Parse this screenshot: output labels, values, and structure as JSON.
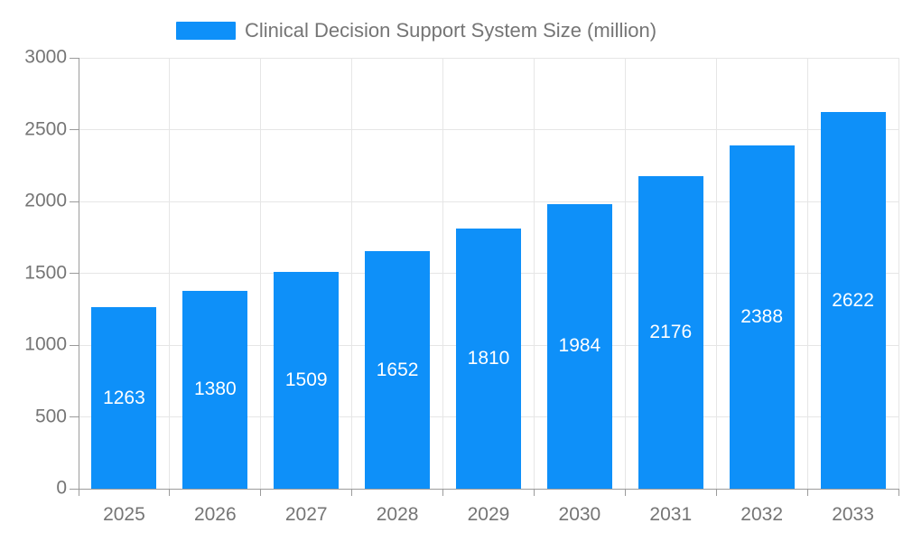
{
  "legend": {
    "label": "Clinical Decision Support System Size (million)"
  },
  "colors": {
    "bar": "#0e90f9",
    "axis": "#9b9b9b",
    "grid": "#e6e6e6",
    "tick_label": "#757575",
    "value_label": "#ffffff",
    "background": "#ffffff"
  },
  "chart_data": {
    "type": "bar",
    "title": "Clinical Decision Support System Size (million)",
    "categories": [
      "2025",
      "2026",
      "2027",
      "2028",
      "2029",
      "2030",
      "2031",
      "2032",
      "2033"
    ],
    "values": [
      1263,
      1380,
      1509,
      1652,
      1810,
      1984,
      2176,
      2388,
      2622
    ],
    "xlabel": "",
    "ylabel": "",
    "ylim": [
      0,
      3000
    ],
    "yticks": [
      0,
      500,
      1000,
      1500,
      2000,
      2500,
      3000
    ],
    "grid": true,
    "legend_position": "top",
    "value_label_position": "inside-center"
  }
}
